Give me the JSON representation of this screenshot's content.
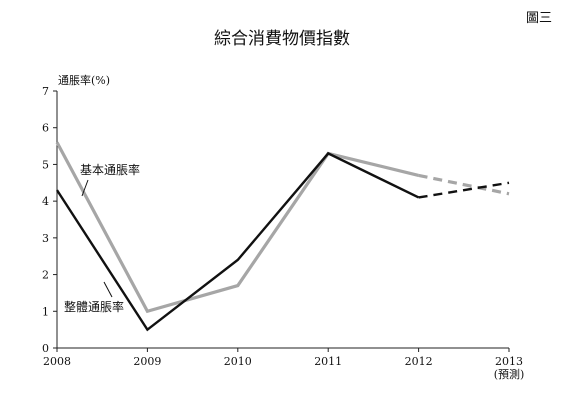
{
  "figure_label": "圖三",
  "chart_data": {
    "type": "line",
    "title": "綜合消費物價指數",
    "ylabel": "通脹率(%)",
    "xlabel": "",
    "x": [
      "2008",
      "2009",
      "2010",
      "2011",
      "2012",
      "2013"
    ],
    "x_sublabels": [
      "",
      "",
      "",
      "",
      "",
      "(預測)"
    ],
    "ylim": [
      0,
      7
    ],
    "yticks": [
      0,
      1,
      2,
      3,
      4,
      5,
      6,
      7
    ],
    "grid": false,
    "forecast_from_index": 4,
    "series": [
      {
        "name": "基本通脹率",
        "color": "#a6a6a6",
        "values": [
          5.6,
          1.0,
          1.7,
          5.3,
          4.7,
          4.2
        ]
      },
      {
        "name": "整體通脹率",
        "color": "#111111",
        "values": [
          4.3,
          0.5,
          2.4,
          5.3,
          4.1,
          4.5
        ]
      }
    ]
  }
}
